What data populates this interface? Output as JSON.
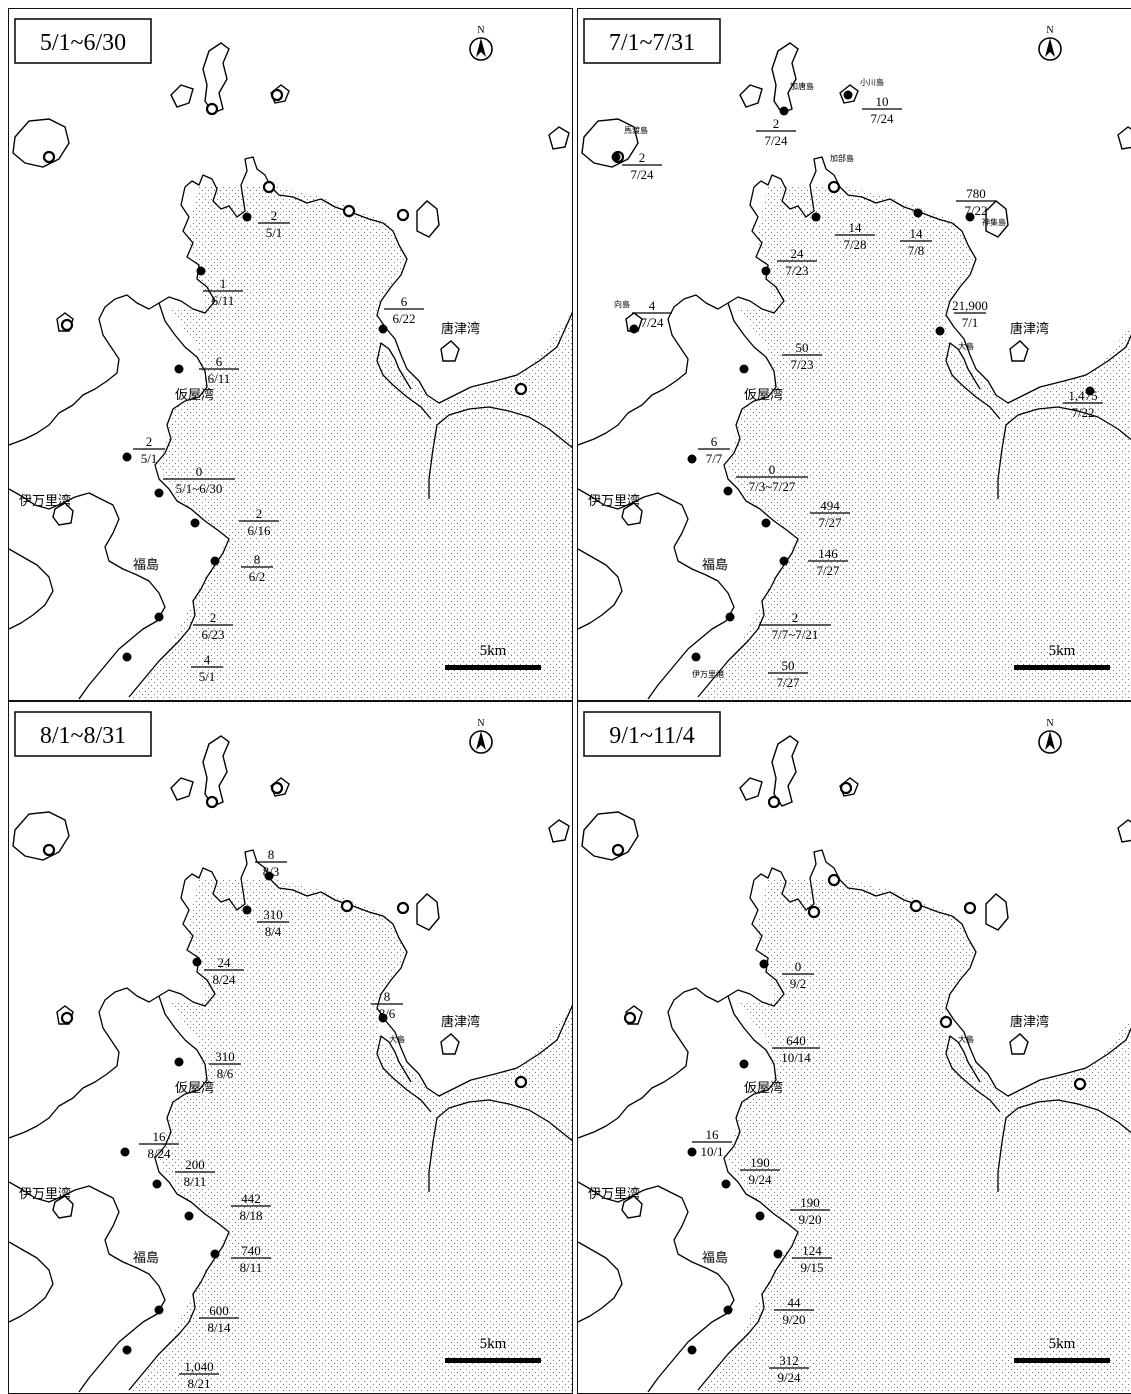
{
  "north_label": "N",
  "scale_label": "5km",
  "place_names": {
    "karatsu": "唐津湾",
    "kariya": "仮屋湾",
    "imari": "伊万里湾",
    "fukushima": "福島",
    "oshima": "大島",
    "kakara": "加唐島",
    "ogawa": "小川島",
    "madara": "馬渡島",
    "kabe": "加部島",
    "kamishima": "神集島",
    "mukai": "向島",
    "imari_port": "伊万里港"
  },
  "panels": [
    {
      "period": "5/1~6/30",
      "stations": [
        {
          "count": "2",
          "date": "5/1"
        },
        {
          "count": "1",
          "date": "6/11"
        },
        {
          "count": "6",
          "date": "6/22"
        },
        {
          "count": "6",
          "date": "6/11"
        },
        {
          "count": "2",
          "date": "5/1"
        },
        {
          "count": "0",
          "date": "5/1~6/30"
        },
        {
          "count": "2",
          "date": "6/16"
        },
        {
          "count": "8",
          "date": "6/2"
        },
        {
          "count": "2",
          "date": "6/23"
        },
        {
          "count": "4",
          "date": "5/1"
        }
      ]
    },
    {
      "period": "7/1~7/31",
      "stations": [
        {
          "count": "2",
          "date": "7/24"
        },
        {
          "count": "10",
          "date": "7/24"
        },
        {
          "count": "2",
          "date": "7/24"
        },
        {
          "count": "780",
          "date": "7/22"
        },
        {
          "count": "14",
          "date": "7/28"
        },
        {
          "count": "14",
          "date": "7/8"
        },
        {
          "count": "24",
          "date": "7/23"
        },
        {
          "count": "4",
          "date": "7/24"
        },
        {
          "count": "21,900",
          "date": "7/1"
        },
        {
          "count": "50",
          "date": "7/23"
        },
        {
          "count": "1,475",
          "date": "7/22"
        },
        {
          "count": "6",
          "date": "7/7"
        },
        {
          "count": "0",
          "date": "7/3~7/27"
        },
        {
          "count": "494",
          "date": "7/27"
        },
        {
          "count": "146",
          "date": "7/27"
        },
        {
          "count": "2",
          "date": "7/7~7/21"
        },
        {
          "count": "50",
          "date": "7/27"
        }
      ]
    },
    {
      "period": "8/1~8/31",
      "stations": [
        {
          "count": "8",
          "date": "8/3"
        },
        {
          "count": "310",
          "date": "8/4"
        },
        {
          "count": "24",
          "date": "8/24"
        },
        {
          "count": "8",
          "date": "8/6"
        },
        {
          "count": "310",
          "date": "8/6"
        },
        {
          "count": "16",
          "date": "8/24"
        },
        {
          "count": "200",
          "date": "8/11"
        },
        {
          "count": "442",
          "date": "8/18"
        },
        {
          "count": "740",
          "date": "8/11"
        },
        {
          "count": "600",
          "date": "8/14"
        },
        {
          "count": "1,040",
          "date": "8/21"
        }
      ]
    },
    {
      "period": "9/1~11/4",
      "stations": [
        {
          "count": "0",
          "date": "9/2"
        },
        {
          "count": "640",
          "date": "10/14"
        },
        {
          "count": "16",
          "date": "10/1"
        },
        {
          "count": "190",
          "date": "9/24"
        },
        {
          "count": "190",
          "date": "9/20"
        },
        {
          "count": "124",
          "date": "9/15"
        },
        {
          "count": "44",
          "date": "9/20"
        },
        {
          "count": "312",
          "date": "9/24"
        }
      ]
    }
  ]
}
